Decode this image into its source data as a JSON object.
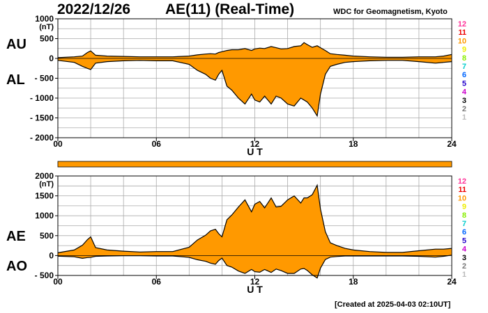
{
  "header": {
    "date": "2022/12/26",
    "title": "AE(11) (Real-Time)",
    "institution": "WDC for Geomagnetism, Kyoto",
    "created": "[Created at 2025-04-03 02:10UT]"
  },
  "colors": {
    "fill": "#ff9900",
    "line": "#000000",
    "grid": "#aaaaaa",
    "frame": "#000000"
  },
  "station_legend": [
    {
      "label": "12",
      "color": "#ff3399"
    },
    {
      "label": "11",
      "color": "#ee0000"
    },
    {
      "label": "10",
      "color": "#ff9900"
    },
    {
      "label": "9",
      "color": "#eeee00"
    },
    {
      "label": "8",
      "color": "#88ee00"
    },
    {
      "label": "7",
      "color": "#00cccc"
    },
    {
      "label": "6",
      "color": "#0066ff"
    },
    {
      "label": "5",
      "color": "#2200cc"
    },
    {
      "label": "4",
      "color": "#cc00cc"
    },
    {
      "label": "3",
      "color": "#000000"
    },
    {
      "label": "2",
      "color": "#777777"
    },
    {
      "label": "1",
      "color": "#bbbbbb"
    }
  ],
  "availability_bar": {
    "coverage": [
      0,
      24
    ],
    "color": "#ff9900"
  },
  "chart_data": [
    {
      "type": "area",
      "panel": "AU/AL",
      "upper_label": "AU",
      "lower_label": "AL",
      "xlabel": "U T",
      "ylabel_unit": "(nT)",
      "xlim": [
        0,
        24
      ],
      "ylim": [
        -2000,
        1000
      ],
      "x_ticks": [
        "00",
        "06",
        "12",
        "18",
        "24"
      ],
      "y_ticks": [
        {
          "v": 1000,
          "label": "1000"
        },
        {
          "v": 500,
          "label": "500"
        },
        {
          "v": 0,
          "label": "0"
        },
        {
          "v": -500,
          "label": "- 500"
        },
        {
          "v": -1000,
          "label": "- 1000"
        },
        {
          "v": -1500,
          "label": "- 1500"
        },
        {
          "v": -2000,
          "label": "- 2000"
        }
      ],
      "grid": true,
      "x": [
        0,
        1,
        1.5,
        1.8,
        2,
        2.3,
        3,
        4,
        5,
        6,
        7,
        8,
        8.5,
        9,
        9.3,
        9.6,
        9.8,
        10,
        10.3,
        10.6,
        11,
        11.4,
        11.8,
        12,
        12.3,
        12.6,
        13,
        13.3,
        13.6,
        14,
        14.4,
        14.8,
        15,
        15.2,
        15.5,
        15.8,
        16,
        16.3,
        16.6,
        17,
        17.5,
        18,
        19,
        20,
        21,
        22,
        23,
        23.5,
        24
      ],
      "series": [
        {
          "name": "AU",
          "values": [
            20,
            40,
            60,
            150,
            190,
            80,
            60,
            50,
            40,
            40,
            40,
            60,
            90,
            110,
            120,
            110,
            150,
            170,
            200,
            220,
            220,
            250,
            200,
            240,
            260,
            250,
            300,
            270,
            240,
            250,
            300,
            320,
            400,
            350,
            280,
            320,
            270,
            200,
            120,
            100,
            80,
            60,
            40,
            30,
            30,
            40,
            40,
            60,
            100
          ]
        },
        {
          "name": "AL",
          "values": [
            -50,
            -100,
            -200,
            -250,
            -280,
            -120,
            -80,
            -60,
            -50,
            -60,
            -60,
            -150,
            -300,
            -400,
            -500,
            -550,
            -400,
            -300,
            -700,
            -800,
            -1000,
            -1150,
            -900,
            -1050,
            -1100,
            -950,
            -1150,
            -950,
            -1000,
            -1150,
            -1200,
            -1000,
            -1050,
            -1100,
            -1250,
            -1450,
            -900,
            -400,
            -200,
            -150,
            -100,
            -80,
            -60,
            -50,
            -50,
            -80,
            -120,
            -100,
            -80
          ]
        }
      ]
    },
    {
      "type": "area",
      "panel": "AE/AO",
      "upper_label": "AE",
      "lower_label": "AO",
      "xlabel": "U T",
      "ylabel_unit": "(nT)",
      "xlim": [
        0,
        24
      ],
      "ylim": [
        -500,
        2000
      ],
      "x_ticks": [
        "00",
        "06",
        "12",
        "18",
        "24"
      ],
      "y_ticks": [
        {
          "v": 2000,
          "label": "2000"
        },
        {
          "v": 1500,
          "label": "1500"
        },
        {
          "v": 1000,
          "label": "1000"
        },
        {
          "v": 500,
          "label": "500"
        },
        {
          "v": 0,
          "label": "0"
        },
        {
          "v": -500,
          "label": "- 500"
        }
      ],
      "grid": true,
      "x": [
        0,
        1,
        1.5,
        1.8,
        2,
        2.3,
        3,
        4,
        5,
        6,
        7,
        8,
        8.5,
        9,
        9.3,
        9.6,
        9.8,
        10,
        10.3,
        10.6,
        11,
        11.4,
        11.8,
        12,
        12.3,
        12.6,
        13,
        13.3,
        13.6,
        14,
        14.4,
        14.8,
        15,
        15.2,
        15.5,
        15.8,
        16,
        16.3,
        16.6,
        17,
        17.5,
        18,
        19,
        20,
        21,
        22,
        23,
        23.5,
        24
      ],
      "series": [
        {
          "name": "AE",
          "values": [
            70,
            140,
            260,
            400,
            470,
            200,
            140,
            110,
            90,
            100,
            100,
            210,
            390,
            510,
            620,
            660,
            550,
            470,
            900,
            1020,
            1220,
            1400,
            1100,
            1290,
            1360,
            1200,
            1450,
            1220,
            1240,
            1400,
            1500,
            1320,
            1450,
            1450,
            1530,
            1770,
            1170,
            600,
            320,
            250,
            180,
            140,
            100,
            80,
            80,
            120,
            160,
            160,
            180
          ]
        },
        {
          "name": "AO",
          "values": [
            -15,
            -30,
            -70,
            -50,
            -45,
            -20,
            -10,
            -5,
            -5,
            -10,
            -10,
            -45,
            -105,
            -145,
            -190,
            -220,
            -125,
            -65,
            -250,
            -290,
            -390,
            -450,
            -350,
            -405,
            -420,
            -350,
            -425,
            -340,
            -380,
            -450,
            -450,
            -340,
            -325,
            -375,
            -485,
            -565,
            -315,
            -100,
            -40,
            -25,
            -10,
            -10,
            -10,
            -10,
            -10,
            -20,
            -40,
            -20,
            10
          ]
        }
      ]
    }
  ]
}
